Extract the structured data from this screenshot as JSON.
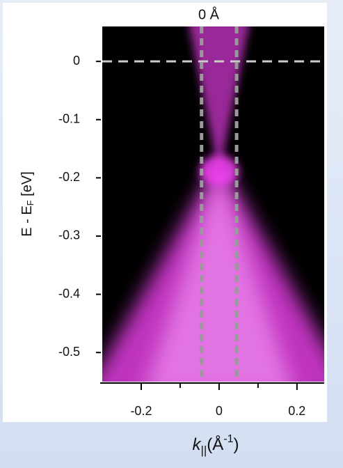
{
  "chart_data": {
    "type": "image",
    "title": "0 Å",
    "ylabel": {
      "main": "E - E",
      "sub": "F",
      "end": " [eV]"
    },
    "xlabel": {
      "main": "k",
      "sub": "||",
      "mid": "(Å",
      "sup": "-1",
      "end": ")"
    },
    "xlim": [
      -0.3,
      0.27
    ],
    "ylim": [
      -0.55,
      0.06
    ],
    "xticks": [
      -0.2,
      0,
      0.2
    ],
    "xminorticks": [
      -0.1,
      0.1
    ],
    "yticks": [
      0,
      -0.1,
      -0.2,
      -0.3,
      -0.4,
      -0.5
    ],
    "hlines": [
      0
    ],
    "vlines": [
      -0.045,
      0.045
    ],
    "colormap": [
      "#000000",
      "#ff44ff"
    ],
    "line_color": "#9a9a9a"
  }
}
